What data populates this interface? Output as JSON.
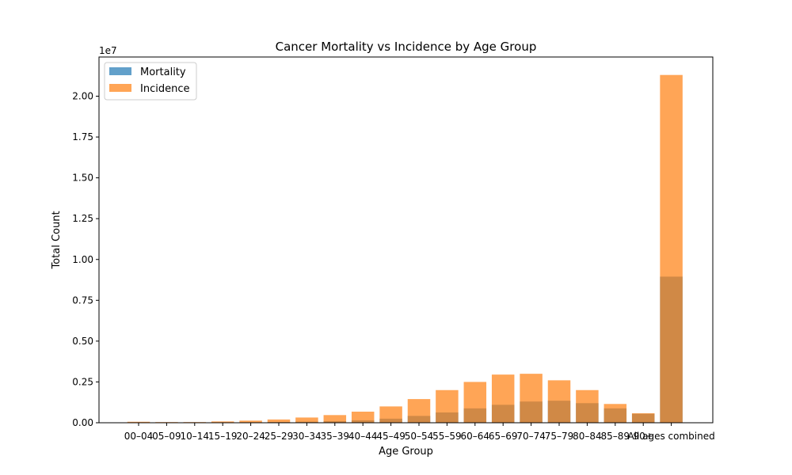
{
  "chart_data": {
    "type": "bar",
    "title": "Cancer Mortality vs Incidence by Age Group",
    "xlabel": "Age Group",
    "ylabel": "Total Count",
    "scale_label": "1e7",
    "ylim": [
      0,
      22400000
    ],
    "yticks": [
      0,
      2500000,
      5000000,
      7500000,
      10000000,
      12500000,
      15000000,
      17500000,
      20000000
    ],
    "ytick_labels": [
      "0.00",
      "0.25",
      "0.50",
      "0.75",
      "1.00",
      "1.25",
      "1.50",
      "1.75",
      "2.00"
    ],
    "grid": false,
    "legend_position": "top-left",
    "categories": [
      "00–04",
      "05–09",
      "10–14",
      "15–19",
      "20–24",
      "25–29",
      "30–34",
      "35–39",
      "40–44",
      "45–49",
      "50–54",
      "55–59",
      "60–64",
      "65–69",
      "70–74",
      "75–79",
      "80–84",
      "85–89",
      "90+",
      "All ages combined"
    ],
    "series": [
      {
        "name": "Mortality",
        "color": "#1f77b4",
        "opacity": 0.7,
        "values": [
          15000,
          12000,
          14000,
          20000,
          30000,
          45000,
          65000,
          100000,
          150000,
          250000,
          420000,
          630000,
          880000,
          1100000,
          1300000,
          1350000,
          1200000,
          880000,
          550000,
          8950000
        ]
      },
      {
        "name": "Incidence",
        "color": "#ff7f0e",
        "opacity": 0.7,
        "values": [
          60000,
          40000,
          40000,
          80000,
          130000,
          200000,
          320000,
          470000,
          680000,
          1000000,
          1450000,
          2000000,
          2500000,
          2950000,
          3000000,
          2600000,
          2000000,
          1150000,
          580000,
          21300000
        ]
      }
    ]
  }
}
